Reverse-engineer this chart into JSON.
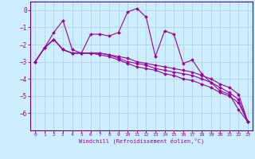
{
  "xlabel": "Windchill (Refroidissement éolien,°C)",
  "ylabel": "",
  "bg_color": "#cceeff",
  "grid_color": "#aaccdd",
  "line_color": "#990099",
  "spine_color": "#660066",
  "xlim": [
    -0.5,
    23.5
  ],
  "ylim": [
    -7.0,
    0.5
  ],
  "xticks": [
    0,
    1,
    2,
    3,
    4,
    5,
    6,
    7,
    8,
    9,
    10,
    11,
    12,
    13,
    14,
    15,
    16,
    17,
    18,
    19,
    20,
    21,
    22,
    23
  ],
  "yticks": [
    0,
    -1,
    -2,
    -3,
    -4,
    -5,
    -6
  ],
  "series": [
    {
      "x": [
        0,
        1,
        2,
        3,
        4,
        5,
        6,
        7,
        8,
        9,
        10,
        11,
        12,
        13,
        14,
        15,
        16,
        17,
        18,
        19,
        20,
        21,
        22,
        23
      ],
      "y": [
        -3.0,
        -2.2,
        -1.3,
        -0.6,
        -2.3,
        -2.5,
        -1.4,
        -1.4,
        -1.5,
        -1.3,
        -0.1,
        0.1,
        -0.4,
        -2.7,
        -1.2,
        -1.4,
        -3.1,
        -2.9,
        -3.7,
        -4.2,
        -4.7,
        -4.9,
        -5.8,
        -6.5
      ]
    },
    {
      "x": [
        0,
        1,
        2,
        3,
        4,
        5,
        6,
        7,
        8,
        9,
        10,
        11,
        12,
        13,
        14,
        15,
        16,
        17,
        18,
        19,
        20,
        21,
        22,
        23
      ],
      "y": [
        -3.0,
        -2.2,
        -1.7,
        -2.3,
        -2.5,
        -2.5,
        -2.5,
        -2.5,
        -2.6,
        -2.7,
        -2.8,
        -3.0,
        -3.1,
        -3.2,
        -3.3,
        -3.4,
        -3.5,
        -3.6,
        -3.8,
        -4.0,
        -4.3,
        -4.5,
        -4.9,
        -6.5
      ]
    },
    {
      "x": [
        0,
        1,
        2,
        3,
        4,
        5,
        6,
        7,
        8,
        9,
        10,
        11,
        12,
        13,
        14,
        15,
        16,
        17,
        18,
        19,
        20,
        21,
        22,
        23
      ],
      "y": [
        -3.0,
        -2.2,
        -1.7,
        -2.3,
        -2.5,
        -2.5,
        -2.5,
        -2.5,
        -2.6,
        -2.8,
        -3.0,
        -3.1,
        -3.2,
        -3.4,
        -3.5,
        -3.6,
        -3.7,
        -3.8,
        -4.0,
        -4.2,
        -4.5,
        -4.8,
        -5.2,
        -6.5
      ]
    },
    {
      "x": [
        0,
        1,
        2,
        3,
        4,
        5,
        6,
        7,
        8,
        9,
        10,
        11,
        12,
        13,
        14,
        15,
        16,
        17,
        18,
        19,
        20,
        21,
        22,
        23
      ],
      "y": [
        -3.0,
        -2.2,
        -1.7,
        -2.3,
        -2.5,
        -2.5,
        -2.5,
        -2.6,
        -2.7,
        -2.9,
        -3.1,
        -3.3,
        -3.4,
        -3.5,
        -3.7,
        -3.8,
        -4.0,
        -4.1,
        -4.3,
        -4.5,
        -4.8,
        -5.0,
        -5.4,
        -6.5
      ]
    }
  ]
}
